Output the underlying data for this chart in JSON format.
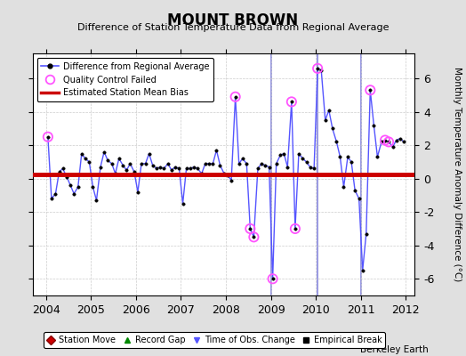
{
  "title": "MOUNT BROWN",
  "subtitle": "Difference of Station Temperature Data from Regional Average",
  "ylabel": "Monthly Temperature Anomaly Difference (°C)",
  "xlim": [
    2003.7,
    2012.2
  ],
  "ylim": [
    -7,
    7.5
  ],
  "yticks": [
    -6,
    -4,
    -2,
    0,
    2,
    4,
    6
  ],
  "xticks": [
    2004,
    2005,
    2006,
    2007,
    2008,
    2009,
    2010,
    2011,
    2012
  ],
  "bias_value": 0.25,
  "background_color": "#e0e0e0",
  "plot_bg_color": "#ffffff",
  "line_color": "#5555ff",
  "bias_color": "#cc0000",
  "qc_color": "#ff55ff",
  "credit": "Berkeley Earth",
  "time_series": [
    [
      2004.04,
      2.5
    ],
    [
      2004.12,
      -1.2
    ],
    [
      2004.21,
      -0.9
    ],
    [
      2004.29,
      0.4
    ],
    [
      2004.37,
      0.6
    ],
    [
      2004.46,
      0.1
    ],
    [
      2004.54,
      -0.4
    ],
    [
      2004.62,
      -0.9
    ],
    [
      2004.71,
      -0.5
    ],
    [
      2004.79,
      1.5
    ],
    [
      2004.87,
      1.2
    ],
    [
      2004.96,
      1.0
    ],
    [
      2005.04,
      -0.5
    ],
    [
      2005.12,
      -1.3
    ],
    [
      2005.21,
      0.7
    ],
    [
      2005.29,
      1.6
    ],
    [
      2005.37,
      1.1
    ],
    [
      2005.46,
      0.9
    ],
    [
      2005.54,
      0.3
    ],
    [
      2005.62,
      1.2
    ],
    [
      2005.71,
      0.8
    ],
    [
      2005.79,
      0.5
    ],
    [
      2005.87,
      0.9
    ],
    [
      2005.96,
      0.4
    ],
    [
      2006.04,
      -0.8
    ],
    [
      2006.12,
      0.9
    ],
    [
      2006.21,
      0.9
    ],
    [
      2006.29,
      1.5
    ],
    [
      2006.37,
      0.8
    ],
    [
      2006.46,
      0.6
    ],
    [
      2006.54,
      0.7
    ],
    [
      2006.62,
      0.6
    ],
    [
      2006.71,
      0.9
    ],
    [
      2006.79,
      0.5
    ],
    [
      2006.87,
      0.7
    ],
    [
      2006.96,
      0.6
    ],
    [
      2007.04,
      -1.5
    ],
    [
      2007.12,
      0.6
    ],
    [
      2007.21,
      0.6
    ],
    [
      2007.29,
      0.7
    ],
    [
      2007.37,
      0.6
    ],
    [
      2007.46,
      0.3
    ],
    [
      2007.54,
      0.9
    ],
    [
      2007.62,
      0.9
    ],
    [
      2007.71,
      0.9
    ],
    [
      2007.79,
      1.7
    ],
    [
      2007.87,
      0.8
    ],
    [
      2007.96,
      0.3
    ],
    [
      2008.04,
      0.2
    ],
    [
      2008.12,
      -0.1
    ],
    [
      2008.21,
      4.9
    ],
    [
      2008.29,
      0.9
    ],
    [
      2008.37,
      1.2
    ],
    [
      2008.46,
      0.9
    ],
    [
      2008.54,
      -3.0
    ],
    [
      2008.62,
      -3.5
    ],
    [
      2008.71,
      0.6
    ],
    [
      2008.79,
      0.9
    ],
    [
      2008.87,
      0.8
    ],
    [
      2008.96,
      0.7
    ],
    [
      2009.04,
      -6.0
    ],
    [
      2009.12,
      0.9
    ],
    [
      2009.21,
      1.4
    ],
    [
      2009.29,
      1.5
    ],
    [
      2009.37,
      0.7
    ],
    [
      2009.46,
      4.6
    ],
    [
      2009.54,
      -3.0
    ],
    [
      2009.62,
      1.5
    ],
    [
      2009.71,
      1.2
    ],
    [
      2009.79,
      1.0
    ],
    [
      2009.87,
      0.7
    ],
    [
      2009.96,
      0.6
    ],
    [
      2010.04,
      6.6
    ],
    [
      2010.12,
      6.5
    ],
    [
      2010.21,
      3.5
    ],
    [
      2010.29,
      4.1
    ],
    [
      2010.37,
      3.0
    ],
    [
      2010.46,
      2.2
    ],
    [
      2010.54,
      1.3
    ],
    [
      2010.62,
      -0.5
    ],
    [
      2010.71,
      1.3
    ],
    [
      2010.79,
      1.0
    ],
    [
      2010.87,
      -0.7
    ],
    [
      2010.96,
      -1.2
    ],
    [
      2011.04,
      -5.5
    ],
    [
      2011.12,
      -3.3
    ],
    [
      2011.21,
      5.3
    ],
    [
      2011.29,
      3.2
    ],
    [
      2011.37,
      1.3
    ],
    [
      2011.46,
      2.2
    ],
    [
      2011.54,
      2.3
    ],
    [
      2011.62,
      2.2
    ],
    [
      2011.71,
      1.9
    ],
    [
      2011.79,
      2.3
    ],
    [
      2011.87,
      2.4
    ],
    [
      2011.96,
      2.2
    ]
  ],
  "qc_failed": [
    [
      2004.04,
      2.5
    ],
    [
      2008.21,
      4.9
    ],
    [
      2008.54,
      -3.0
    ],
    [
      2008.62,
      -3.5
    ],
    [
      2009.04,
      -6.0
    ],
    [
      2009.46,
      4.6
    ],
    [
      2009.54,
      -3.0
    ],
    [
      2010.04,
      6.6
    ],
    [
      2011.21,
      5.3
    ],
    [
      2011.54,
      2.3
    ],
    [
      2011.62,
      2.2
    ]
  ],
  "time_of_obs_changes": [
    2009.0,
    2010.04,
    2011.0
  ],
  "vertical_line_color": "#8888dd"
}
